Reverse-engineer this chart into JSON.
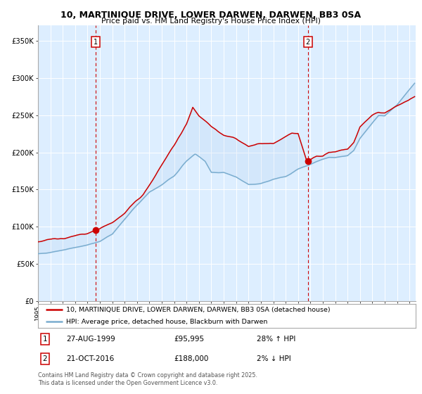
{
  "title1": "10, MARTINIQUE DRIVE, LOWER DARWEN, DARWEN, BB3 0SA",
  "title2": "Price paid vs. HM Land Registry's House Price Index (HPI)",
  "legend_line1": "10, MARTINIQUE DRIVE, LOWER DARWEN, DARWEN, BB3 0SA (detached house)",
  "legend_line2": "HPI: Average price, detached house, Blackburn with Darwen",
  "annotation1_date": "27-AUG-1999",
  "annotation1_price": "£95,995",
  "annotation1_hpi": "28% ↑ HPI",
  "annotation2_date": "21-OCT-2016",
  "annotation2_price": "£188,000",
  "annotation2_hpi": "2% ↓ HPI",
  "footer": "Contains HM Land Registry data © Crown copyright and database right 2025.\nThis data is licensed under the Open Government Licence v3.0.",
  "red_line_color": "#cc0000",
  "blue_line_color": "#7aadcf",
  "bg_color": "#ddeeff",
  "vline_color": "#cc0000",
  "dot_color": "#cc0000",
  "marker1_year": 1999.648,
  "marker1_value": 95995,
  "marker2_year": 2016.8,
  "marker2_value": 188000,
  "ylim_max": 370000,
  "ylim_min": 0
}
